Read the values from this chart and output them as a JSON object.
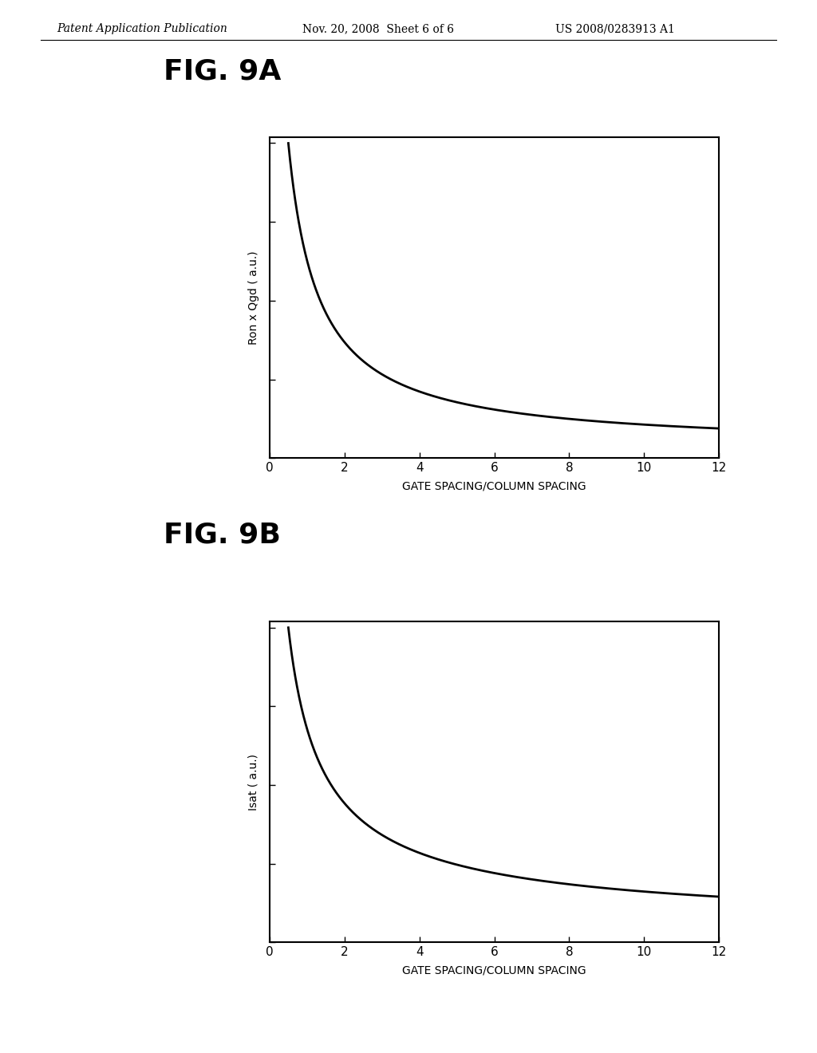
{
  "page_header_left": "Patent Application Publication",
  "page_header_center": "Nov. 20, 2008  Sheet 6 of 6",
  "page_header_right": "US 2008/0283913 A1",
  "fig9a_title": "FIG. 9A",
  "fig9b_title": "FIG. 9B",
  "xlabel": "GATE SPACING/COLUMN SPACING",
  "ylabel_9a": "Ron x Qgd ( a.u.)",
  "ylabel_9b": "Isat ( a.u.)",
  "xticks": [
    0,
    2,
    4,
    6,
    8,
    10,
    12
  ],
  "xmin": 0,
  "xmax": 12,
  "background_color": "#ffffff",
  "line_color": "#000000",
  "header_fontsize": 10,
  "fig_label_fontsize": 26,
  "axis_label_fontsize": 10,
  "tick_label_fontsize": 11,
  "ylabel_9a_rotation": 90,
  "ylabel_9b_rotation": 90
}
